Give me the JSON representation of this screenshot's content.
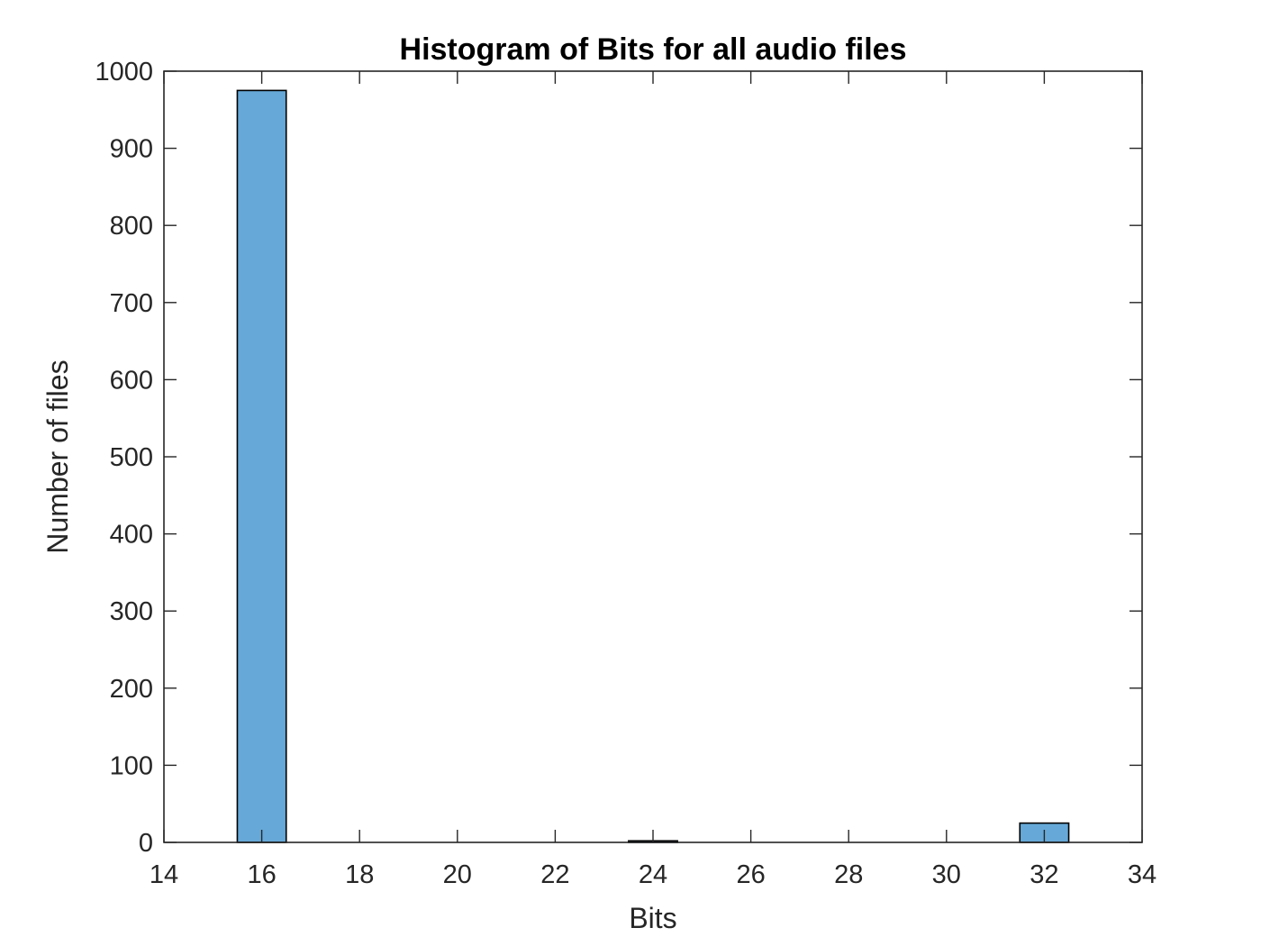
{
  "chart_data": {
    "type": "bar",
    "title": "Histogram of Bits for all audio files",
    "xlabel": "Bits",
    "ylabel": "Number of files",
    "xlim": [
      14,
      34
    ],
    "ylim": [
      0,
      1000
    ],
    "xticks": [
      14,
      16,
      18,
      20,
      22,
      24,
      26,
      28,
      30,
      32,
      34
    ],
    "yticks": [
      0,
      100,
      200,
      300,
      400,
      500,
      600,
      700,
      800,
      900,
      1000
    ],
    "bin_width": 1,
    "bins": [
      {
        "center": 16,
        "count": 975
      },
      {
        "center": 17,
        "count": 0
      },
      {
        "center": 18,
        "count": 0
      },
      {
        "center": 19,
        "count": 0
      },
      {
        "center": 20,
        "count": 0
      },
      {
        "center": 21,
        "count": 0
      },
      {
        "center": 22,
        "count": 0
      },
      {
        "center": 23,
        "count": 0
      },
      {
        "center": 24,
        "count": 2
      },
      {
        "center": 25,
        "count": 0
      },
      {
        "center": 26,
        "count": 0
      },
      {
        "center": 27,
        "count": 0
      },
      {
        "center": 28,
        "count": 0
      },
      {
        "center": 29,
        "count": 0
      },
      {
        "center": 30,
        "count": 0
      },
      {
        "center": 31,
        "count": 0
      },
      {
        "center": 32,
        "count": 25
      }
    ],
    "bar_color": "#66a9d8",
    "edge_color": "#000000",
    "grid": false,
    "legend": "none"
  }
}
